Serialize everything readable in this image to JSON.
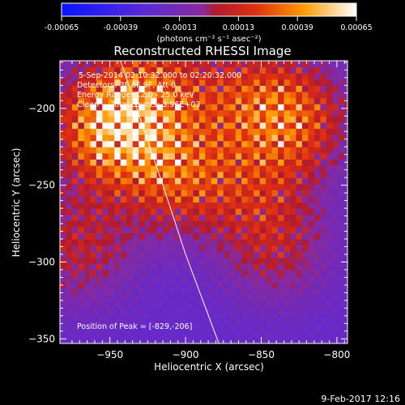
{
  "colorbar": {
    "ticks": [
      "-0.00065",
      "-0.00039",
      "-0.00013",
      "0.00013",
      "0.00039",
      "0.00065"
    ],
    "unit_label": "(photons cm⁻² s⁻¹ asec⁻²)"
  },
  "footer": {
    "date": "9-Feb-2017 12:16"
  },
  "chart_data": {
    "type": "heatmap",
    "title": "Reconstructed RHESSI Image",
    "xlabel": "Heliocentric X (arcsec)",
    "ylabel": "Heliocentric Y (arcsec)",
    "xlim": [
      -983,
      -793
    ],
    "ylim": [
      -353,
      -169
    ],
    "xticks": [
      -950,
      -900,
      -850,
      -800
    ],
    "yticks": [
      -200,
      -250,
      -300,
      -350
    ],
    "info_lines": [
      "5-Sep-2014 02:10:32.000 to 02:20:32.000",
      "Detectors: 3F 6F 9F, Att 0",
      "Energy Range: 12.0 - 25.0 keV",
      "Clean     Total counts: 3.96E+03"
    ],
    "peak_label": "Position of Peak = [-829,-206]",
    "colorbar_range": [
      -0.00065,
      0.00065
    ],
    "sources": [
      {
        "x": -829,
        "y": -206,
        "value": 0.00062
      },
      {
        "x": -955,
        "y": -214,
        "value": 0.0005
      },
      {
        "x": -941,
        "y": -210,
        "value": 0.00046
      },
      {
        "x": -905,
        "y": -244,
        "value": 0.00054
      },
      {
        "x": -920,
        "y": -184,
        "value": 0.0004
      },
      {
        "x": -970,
        "y": -290,
        "value": 0.00038
      },
      {
        "x": -865,
        "y": -190,
        "value": 0.00036
      },
      {
        "x": -840,
        "y": -290,
        "value": 0.00034
      },
      {
        "x": -855,
        "y": -250,
        "value": 0.0003
      }
    ],
    "limb_line": [
      [
        -943,
        -169
      ],
      [
        -915,
        -250
      ],
      [
        -900,
        -295
      ],
      [
        -878,
        -353
      ]
    ]
  }
}
